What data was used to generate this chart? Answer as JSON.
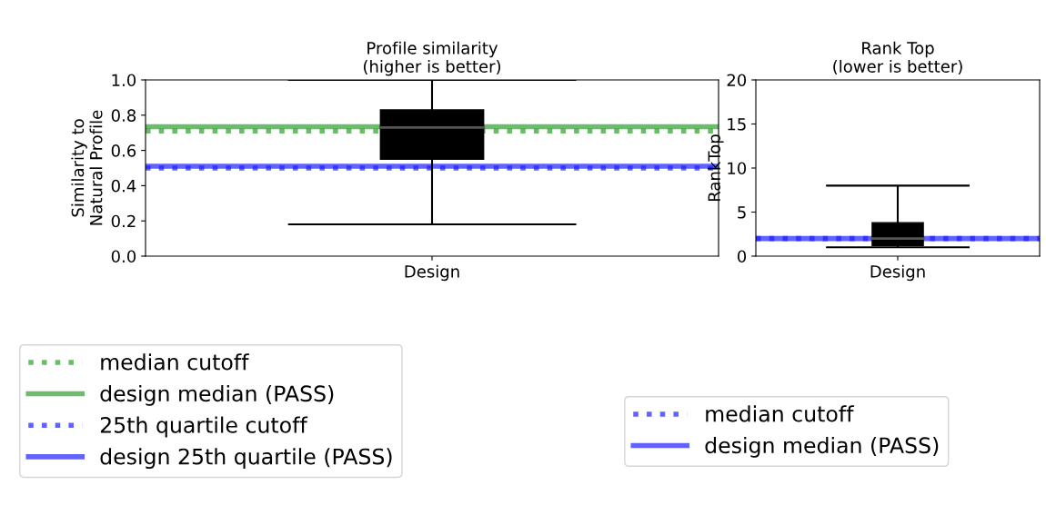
{
  "chart_data": [
    {
      "type": "box",
      "title": "Profile similarity\n(higher is better)",
      "ylabel": "Similarity to\nNatural Profile",
      "categories": [
        "Design"
      ],
      "ylim": [
        0,
        1
      ],
      "yticks": [
        {
          "value": 0,
          "label": "0.0"
        },
        {
          "value": 0.2,
          "label": "0.2"
        },
        {
          "value": 0.4,
          "label": "0.4"
        },
        {
          "value": 0.6,
          "label": "0.6"
        },
        {
          "value": 0.8,
          "label": "0.8"
        },
        {
          "value": 1,
          "label": "1.0"
        }
      ],
      "boxes": [
        {
          "low": 0.18,
          "q1": 0.55,
          "median": 0.73,
          "q3": 0.83,
          "high": 1.0
        }
      ],
      "ref_lines": [
        {
          "axis": "y",
          "value": 0.71,
          "label": "median cutoff",
          "color": "#2ca02c",
          "line_style": "dotted"
        },
        {
          "axis": "y",
          "value": 0.735,
          "label": "design median (PASS)",
          "color": "#2ca02c",
          "line_style": "solid"
        },
        {
          "axis": "y",
          "value": 0.5,
          "label": "25th quartile cutoff",
          "color": "#1f1fff",
          "line_style": "dotted"
        },
        {
          "axis": "y",
          "value": 0.51,
          "label": "design 25th quartile (PASS)",
          "color": "#1f1fff",
          "line_style": "solid"
        }
      ],
      "legend": "bottom",
      "grid": false
    },
    {
      "type": "box",
      "title": "Rank Top\n(lower is better)",
      "ylabel": "RankTop",
      "categories": [
        "Design"
      ],
      "ylim": [
        0,
        20
      ],
      "yticks": [
        0,
        5,
        10,
        15,
        20
      ],
      "boxes": [
        {
          "low": 1,
          "q1": 1.2,
          "median": 2,
          "q3": 3.8,
          "high": 8
        }
      ],
      "ref_lines": [
        {
          "axis": "y",
          "value": 2,
          "label": "median cutoff",
          "color": "#1f1fff",
          "line_style": "dotted"
        },
        {
          "axis": "y",
          "value": 2,
          "label": "design median (PASS)",
          "color": "#1f1fff",
          "line_style": "solid"
        }
      ],
      "legend": "bottom",
      "grid": false
    }
  ]
}
